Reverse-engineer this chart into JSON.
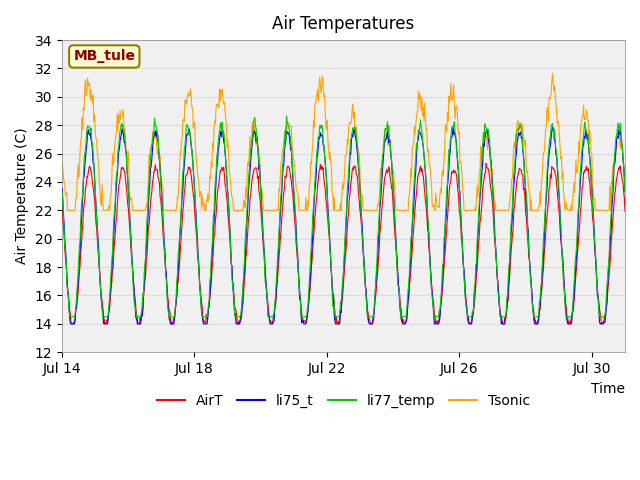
{
  "title": "Air Temperatures",
  "xlabel": "Time",
  "ylabel": "Air Temperature (C)",
  "ylim": [
    12,
    34
  ],
  "yticks": [
    12,
    14,
    16,
    18,
    20,
    22,
    24,
    26,
    28,
    30,
    32,
    34
  ],
  "xtick_labels": [
    "Jul 14",
    "Jul 18",
    "Jul 22",
    "Jul 26",
    "Jul 30"
  ],
  "xtick_positions": [
    0,
    4,
    8,
    12,
    16
  ],
  "annotation_text": "MB_tule",
  "annotation_color": "#8B0000",
  "annotation_bg": "#FFFACD",
  "annotation_border": "#8B8000",
  "colors": {
    "AirT": "#FF0000",
    "li75_t": "#0000FF",
    "li77_temp": "#00CC00",
    "Tsonic": "#FFA500"
  },
  "legend_labels": [
    "AirT",
    "li75_t",
    "li77_temp",
    "Tsonic"
  ],
  "grid_color": "#DDDDDD",
  "bg_color": "#F0F0F0",
  "plot_bg": "#FFFFFF",
  "n_days": 17,
  "points_per_day": 48,
  "seed": 42
}
